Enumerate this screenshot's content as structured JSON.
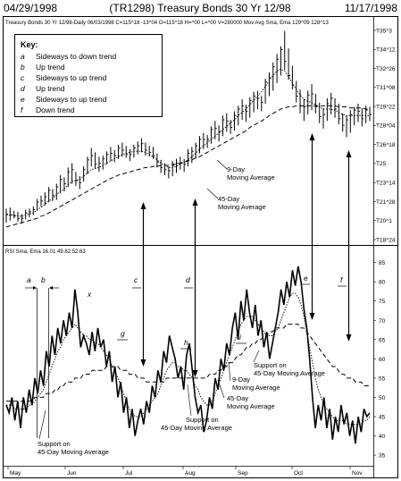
{
  "header": {
    "start_date": "04/29/1998",
    "title": "(TR1298) Treasury Bonds 30 Yr 12/98",
    "end_date": "11/17/1998"
  },
  "price_info_line": "Treasury Bonds 30 Yr 12/98-Daily  06/03/1998  C=115^18 -13^04 O=115^18 H=^00 L=^00 V=280000 Mov Avg Sma, Ema  129^09  128^13",
  "rsi_info_line": "RSI Sma, Ema  16.01   49.82   52.63",
  "key": {
    "title": "Key:",
    "items": [
      {
        "letter": "a",
        "text": "Sideways to down trend"
      },
      {
        "letter": "b",
        "text": "Up trend"
      },
      {
        "letter": "c",
        "text": "Sideways to up trend"
      },
      {
        "letter": "d",
        "text": "Up trend"
      },
      {
        "letter": "e",
        "text": "Sideways to up trend"
      },
      {
        "letter": "f",
        "text": "Down trend"
      }
    ]
  },
  "annotations": {
    "price_ma9": "9-Day Moving Average",
    "price_ma45": "45-Day Moving Average",
    "rsi_support_left": "Support on 45-Day Moving Average",
    "rsi_support_mid": "Support on 45-Day Moving Average",
    "rsi_ma45": "45-Day Moving Average",
    "rsi_ma9": "9-Day Moving Average",
    "rsi_support_right": "Support on 45-Day Moving Average",
    "rsi_x": "x",
    "rsi_g": "g",
    "rsi_h": "h",
    "rsi_i": "i"
  },
  "colors": {
    "ink": "#000000",
    "background": "#ffffff"
  },
  "chart_data": [
    {
      "type": "bar",
      "subtype": "ohlc",
      "x": [
        "May",
        "Jun",
        "Jul",
        "Aug",
        "Sep",
        "Oct",
        "Nov"
      ],
      "ylim": [
        116.5,
        136
      ],
      "y_tick_labels": [
        "T35^3",
        "T34^12",
        "T32^26",
        "T31^08",
        "T29^22",
        "T28^04",
        "T26^18",
        "T25",
        "T23^14",
        "T21^28",
        "T20^1",
        "T18^24"
      ],
      "high_low_ranges": [
        [
          117.9,
          119.2
        ],
        [
          118.1,
          119.3
        ],
        [
          118.3,
          119.0
        ],
        [
          118.0,
          118.9
        ],
        [
          117.8,
          118.7
        ],
        [
          118.2,
          119.1
        ],
        [
          118.4,
          119.2
        ],
        [
          118.6,
          119.4
        ],
        [
          119.0,
          120.1
        ],
        [
          119.4,
          120.4
        ],
        [
          119.5,
          120.7
        ],
        [
          119.8,
          121.2
        ],
        [
          119.9,
          121.0
        ],
        [
          120.0,
          121.5
        ],
        [
          120.6,
          122.3
        ],
        [
          120.8,
          122.1
        ],
        [
          121.2,
          123.0
        ],
        [
          121.5,
          123.4
        ],
        [
          121.3,
          122.6
        ],
        [
          121.0,
          122.2
        ],
        [
          121.7,
          123.1
        ],
        [
          122.4,
          124.0
        ],
        [
          123.1,
          124.8
        ],
        [
          122.9,
          124.4
        ],
        [
          122.6,
          124.0
        ],
        [
          122.8,
          124.1
        ],
        [
          123.3,
          124.5
        ],
        [
          123.6,
          124.9
        ],
        [
          123.5,
          124.6
        ],
        [
          123.8,
          125.1
        ],
        [
          124.0,
          125.3
        ],
        [
          123.9,
          125.0
        ],
        [
          123.6,
          124.7
        ],
        [
          123.9,
          125.1
        ],
        [
          124.2,
          125.4
        ],
        [
          124.4,
          125.7
        ],
        [
          124.1,
          125.3
        ],
        [
          124.0,
          125.0
        ],
        [
          123.8,
          124.9
        ],
        [
          123.0,
          124.3
        ],
        [
          122.5,
          123.7
        ],
        [
          122.3,
          123.4
        ],
        [
          122.0,
          123.1
        ],
        [
          122.2,
          123.6
        ],
        [
          122.5,
          123.8
        ],
        [
          122.8,
          124.0
        ],
        [
          122.6,
          123.8
        ],
        [
          123.1,
          124.7
        ],
        [
          123.4,
          124.9
        ],
        [
          123.8,
          125.3
        ],
        [
          124.3,
          125.9
        ],
        [
          124.7,
          126.2
        ],
        [
          124.8,
          126.0
        ],
        [
          125.2,
          126.8
        ],
        [
          125.6,
          127.3
        ],
        [
          125.4,
          126.9
        ],
        [
          125.9,
          127.8
        ],
        [
          126.3,
          128.0
        ],
        [
          126.1,
          127.4
        ],
        [
          126.4,
          128.2
        ],
        [
          126.9,
          128.7
        ],
        [
          127.4,
          129.3
        ],
        [
          127.2,
          128.8
        ],
        [
          127.6,
          129.5
        ],
        [
          128.1,
          130.0
        ],
        [
          128.4,
          130.1
        ],
        [
          128.2,
          129.6
        ],
        [
          128.9,
          131.2
        ],
        [
          129.6,
          131.8
        ],
        [
          130.1,
          132.7
        ],
        [
          130.8,
          133.5
        ],
        [
          131.5,
          134.2
        ],
        [
          132.0,
          135.6
        ],
        [
          131.1,
          134.0
        ],
        [
          130.2,
          132.4
        ],
        [
          129.0,
          131.0
        ],
        [
          128.0,
          130.2
        ],
        [
          127.3,
          129.3
        ],
        [
          127.9,
          130.1
        ],
        [
          128.3,
          130.7
        ],
        [
          128.0,
          129.8
        ],
        [
          127.1,
          129.0
        ],
        [
          126.6,
          128.5
        ],
        [
          127.3,
          129.4
        ],
        [
          127.9,
          129.9
        ],
        [
          127.6,
          129.4
        ],
        [
          127.0,
          128.9
        ],
        [
          126.3,
          128.0
        ],
        [
          125.8,
          127.8
        ],
        [
          126.2,
          128.3
        ],
        [
          126.9,
          128.6
        ],
        [
          127.2,
          128.9
        ],
        [
          126.8,
          128.5
        ],
        [
          127.1,
          128.7
        ],
        [
          127.3,
          128.6
        ]
      ],
      "closes": [
        118.7,
        118.6,
        118.5,
        118.3,
        118.3,
        118.8,
        118.9,
        119.1,
        119.8,
        119.9,
        120.3,
        120.9,
        120.4,
        121.2,
        121.9,
        121.5,
        122.6,
        122.8,
        121.8,
        121.6,
        122.8,
        123.7,
        124.1,
        123.3,
        123.4,
        123.8,
        124.2,
        124.3,
        124.1,
        124.8,
        124.6,
        124.2,
        124.2,
        124.8,
        125.0,
        125.2,
        124.6,
        124.4,
        124.1,
        123.5,
        123.0,
        122.8,
        122.7,
        123.2,
        123.4,
        123.4,
        123.3,
        124.3,
        124.5,
        125.0,
        125.6,
        125.6,
        125.6,
        126.5,
        126.6,
        126.3,
        127.4,
        127.3,
        126.7,
        127.8,
        128.4,
        128.7,
        128.2,
        129.2,
        129.6,
        129.4,
        129.0,
        130.9,
        131.3,
        132.3,
        133.0,
        133.9,
        132.8,
        131.5,
        130.6,
        129.6,
        128.7,
        128.6,
        129.7,
        129.8,
        128.6,
        127.7,
        127.9,
        128.9,
        129.4,
        128.4,
        127.5,
        126.9,
        127.4,
        127.9,
        128.3,
        128.2,
        127.5,
        128.3,
        127.9
      ],
      "moving_average_9": [
        118.6,
        118.6,
        118.6,
        118.5,
        118.5,
        118.6,
        118.7,
        118.8,
        119.1,
        119.3,
        119.6,
        119.9,
        120.1,
        120.5,
        120.8,
        121.0,
        121.4,
        121.7,
        121.8,
        121.9,
        122.2,
        122.5,
        122.8,
        122.9,
        123.0,
        123.2,
        123.4,
        123.6,
        123.8,
        124.0,
        124.2,
        124.3,
        124.4,
        124.5,
        124.5,
        124.5,
        124.4,
        124.2,
        124.0,
        123.7,
        123.4,
        123.2,
        123.0,
        123.0,
        123.1,
        123.3,
        123.5,
        123.7,
        124.0,
        124.3,
        124.7,
        125.0,
        125.3,
        125.6,
        125.9,
        126.2,
        126.5,
        126.8,
        127.1,
        127.4,
        127.8,
        128.1,
        128.4,
        128.8,
        129.2,
        129.6,
        130.0,
        130.5,
        131.0,
        131.5,
        131.9,
        132.1,
        131.9,
        131.4,
        130.8,
        130.2,
        129.7,
        129.3,
        129.1,
        129.0,
        128.8,
        128.6,
        128.4,
        128.4,
        128.4,
        128.3,
        128.1,
        127.9,
        127.8,
        127.8,
        127.8,
        127.8,
        127.8,
        127.8,
        127.8
      ],
      "moving_average_45": [
        117.5,
        117.6,
        117.7,
        117.8,
        117.9,
        118.0,
        118.1,
        118.2,
        118.3,
        118.5,
        118.6,
        118.8,
        119.0,
        119.2,
        119.4,
        119.6,
        119.8,
        120.0,
        120.2,
        120.4,
        120.6,
        120.8,
        121.0,
        121.2,
        121.4,
        121.6,
        121.8,
        122.0,
        122.1,
        122.3,
        122.4,
        122.5,
        122.6,
        122.7,
        122.8,
        122.9,
        123.0,
        123.0,
        123.1,
        123.1,
        123.2,
        123.2,
        123.2,
        123.3,
        123.3,
        123.4,
        123.5,
        123.6,
        123.7,
        123.9,
        124.0,
        124.2,
        124.4,
        124.6,
        124.8,
        125.0,
        125.2,
        125.4,
        125.6,
        125.8,
        126.0,
        126.2,
        126.4,
        126.7,
        126.9,
        127.1,
        127.3,
        127.5,
        127.8,
        128.0,
        128.2,
        128.4,
        128.5,
        128.6,
        128.6,
        128.7,
        128.7,
        128.7,
        128.7,
        128.7,
        128.7,
        128.7,
        128.7,
        128.7,
        128.7,
        128.7,
        128.6,
        128.6,
        128.6,
        128.5,
        128.5,
        128.5,
        128.5,
        128.4,
        128.4
      ]
    },
    {
      "type": "line",
      "ylim": [
        32,
        87
      ],
      "y_ticks": [
        35,
        40,
        45,
        50,
        55,
        60,
        65,
        70,
        75,
        80,
        85
      ],
      "x": [
        "May",
        "Jun",
        "Jul",
        "Aug",
        "Sep",
        "Oct",
        "Nov"
      ],
      "rsi": [
        48,
        46,
        50,
        44,
        49,
        42,
        50,
        46,
        52,
        48,
        55,
        51,
        57,
        53,
        62,
        58,
        66,
        61,
        68,
        64,
        70,
        66,
        72,
        68,
        78,
        72,
        63,
        66,
        64,
        61,
        67,
        62,
        68,
        63,
        65,
        58,
        62,
        54,
        58,
        50,
        54,
        46,
        50,
        42,
        47,
        40,
        44,
        47,
        43,
        49,
        46,
        53,
        50,
        57,
        54,
        62,
        59,
        66,
        63,
        60,
        55,
        58,
        52,
        61,
        64,
        57,
        50,
        46,
        48,
        41,
        44,
        50,
        47,
        55,
        52,
        60,
        57,
        64,
        61,
        68,
        72,
        65,
        75,
        70,
        78,
        72,
        68,
        74,
        66,
        70,
        63,
        67,
        60,
        64,
        68,
        72,
        78,
        74,
        80,
        76,
        83,
        79,
        84,
        80,
        73,
        68,
        60,
        50,
        42,
        48,
        44,
        50,
        42,
        47,
        39,
        45,
        41,
        48,
        43,
        46,
        40,
        44,
        38,
        45,
        41,
        47,
        45,
        46
      ],
      "moving_average_9": [
        48,
        48,
        48,
        47,
        47,
        47,
        47,
        47,
        48,
        48,
        49,
        50,
        51,
        52,
        54,
        56,
        58,
        60,
        62,
        63,
        65,
        66,
        67,
        68,
        69,
        68,
        67,
        66,
        66,
        65,
        65,
        64,
        64,
        63,
        62,
        61,
        60,
        58,
        57,
        55,
        53,
        51,
        49,
        47,
        46,
        45,
        45,
        45,
        46,
        47,
        48,
        49,
        50,
        51,
        53,
        55,
        57,
        58,
        59,
        59,
        58,
        58,
        57,
        57,
        56,
        55,
        53,
        52,
        50,
        49,
        48,
        48,
        49,
        51,
        53,
        55,
        57,
        59,
        61,
        63,
        65,
        67,
        69,
        70,
        71,
        71,
        71,
        70,
        69,
        68,
        67,
        66,
        66,
        66,
        67,
        68,
        70,
        72,
        74,
        76,
        77,
        77,
        76,
        74,
        71,
        67,
        63,
        59,
        55,
        52,
        50,
        48,
        47,
        46,
        45,
        44,
        44,
        44,
        44,
        43,
        43,
        43,
        43,
        43,
        43,
        44,
        44,
        45
      ],
      "moving_average_45": [
        49,
        49,
        49,
        49,
        49,
        49,
        49,
        49,
        49,
        49,
        50,
        50,
        50,
        50,
        51,
        51,
        51,
        52,
        52,
        53,
        53,
        54,
        54,
        54,
        55,
        55,
        55,
        56,
        56,
        56,
        57,
        57,
        57,
        57,
        57,
        58,
        58,
        58,
        58,
        58,
        57,
        57,
        57,
        56,
        56,
        56,
        55,
        55,
        55,
        54,
        54,
        54,
        54,
        54,
        54,
        54,
        55,
        55,
        55,
        55,
        55,
        55,
        55,
        55,
        55,
        55,
        55,
        55,
        55,
        55,
        55,
        56,
        56,
        56,
        57,
        57,
        58,
        58,
        59,
        59,
        60,
        61,
        61,
        62,
        63,
        63,
        64,
        64,
        65,
        65,
        66,
        66,
        67,
        67,
        68,
        68,
        68,
        68,
        69,
        69,
        69,
        69,
        69,
        68,
        68,
        67,
        66,
        65,
        64,
        63,
        62,
        61,
        60,
        59,
        58,
        58,
        57,
        56,
        56,
        55,
        55,
        55,
        54,
        54,
        54,
        53,
        53,
        53
      ]
    }
  ]
}
